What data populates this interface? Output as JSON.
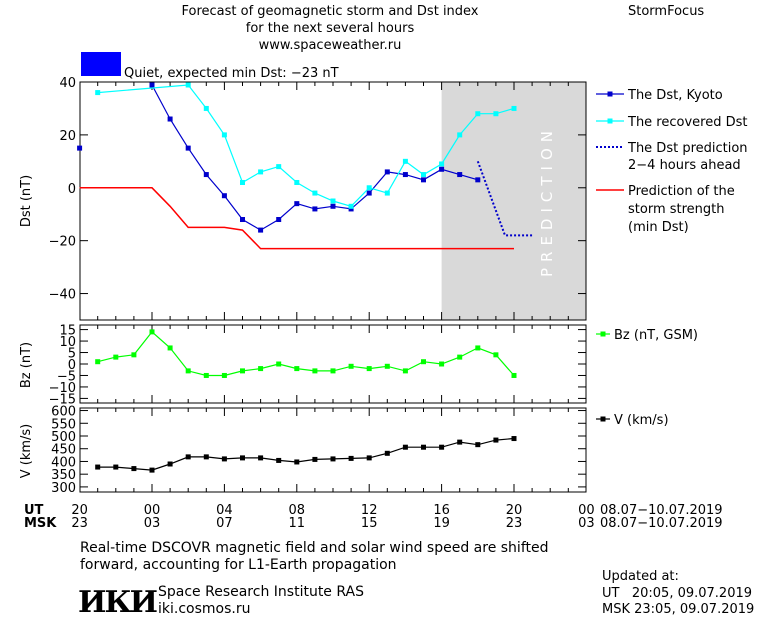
{
  "header": {
    "title_line1": "Forecast of geomagnetic storm and Dst index",
    "title_line2": "for the next several hours",
    "title_line3": "www.spaceweather.ru",
    "brand": "StormFocus"
  },
  "status": {
    "text": "Quiet, expected min Dst: −23 nT",
    "color": "#0000ff"
  },
  "legend": {
    "dst_kyoto": "The Dst, Kyoto",
    "dst_recovered": "The recovered Dst",
    "dst_prediction_line1": "The Dst prediction",
    "dst_prediction_line2": "2−4 hours ahead",
    "storm_line1": "Prediction of the",
    "storm_line2": "storm strength",
    "storm_line3": "(min Dst)",
    "bz": "Bz (nT, GSM)",
    "v": "V (km/s)"
  },
  "prediction_label": "PREDICTION",
  "axes": {
    "ut_label": "UT",
    "msk_label": "MSK",
    "ut_ticks": [
      "20",
      "00",
      "04",
      "08",
      "12",
      "16",
      "20",
      "00"
    ],
    "msk_ticks": [
      "23",
      "03",
      "07",
      "11",
      "15",
      "19",
      "23",
      "03"
    ],
    "date_range_ut": "08.07−10.07.2019",
    "date_range_msk": "08.07−10.07.2019"
  },
  "footer": {
    "note_line1": "Real-time DSCOVR magnetic field and solar wind speed are shifted",
    "note_line2": "forward, accounting for L1-Earth propagation",
    "logo_text": "ИКИ",
    "institute": "Space Research Institute RAS",
    "website": "iki.cosmos.ru",
    "updated_label": "Updated at:",
    "updated_ut": "UT   20:05, 09.07.2019",
    "updated_msk": "MSK 23:05, 09.07.2019"
  },
  "chart_data": [
    {
      "type": "line",
      "ylabel": "Dst (nT)",
      "ylim": [
        -50,
        40
      ],
      "yticks": [
        40,
        20,
        0,
        -20,
        -40
      ],
      "xlim": [
        -4,
        20
      ],
      "prediction_start": 16,
      "series": [
        {
          "name": "The Dst, Kyoto",
          "color": "#0000cc",
          "x": [
            -4,
            -2,
            -1,
            0,
            1,
            2,
            3,
            4,
            5,
            6,
            7,
            8,
            9,
            10,
            11,
            12,
            13,
            14,
            15,
            16,
            17,
            18
          ],
          "y": [
            15,
            null,
            null,
            40,
            26,
            15,
            5,
            -3,
            -12,
            -16,
            -12,
            -6,
            -8,
            -7,
            -8,
            -2,
            6,
            5,
            3,
            7,
            5,
            3
          ]
        },
        {
          "name": "The recovered Dst",
          "color": "#00ffff",
          "x": [
            -3,
            2,
            3,
            4,
            5,
            6,
            7,
            8,
            9,
            10,
            11,
            12,
            13,
            14,
            15,
            16,
            17,
            18,
            19,
            20
          ],
          "y": [
            36,
            40,
            30,
            20,
            2,
            6,
            8,
            2,
            -2,
            -5,
            -7,
            0,
            -2,
            10,
            5,
            9,
            20,
            28,
            28,
            30
          ]
        },
        {
          "name": "The Dst prediction 2-4 hours ahead",
          "color": "#0000cc",
          "x": [
            18,
            19.5,
            21
          ],
          "y": [
            10,
            -18,
            -18
          ]
        },
        {
          "name": "Prediction of the storm strength (min Dst)",
          "color": "#ff0000",
          "x": [
            -4,
            0,
            1,
            2,
            3,
            4,
            5,
            6,
            7,
            11,
            15,
            20
          ],
          "y": [
            0,
            0,
            -7,
            -15,
            -15,
            -15,
            -16,
            -23,
            -23,
            -23,
            -23,
            -23
          ]
        }
      ]
    },
    {
      "type": "line",
      "ylabel": "Bz (nT)",
      "ylim": [
        -17,
        17
      ],
      "yticks": [
        15,
        10,
        5,
        0,
        -5,
        -10,
        -15
      ],
      "series": [
        {
          "name": "Bz (nT, GSM)",
          "color": "#00ff00",
          "x": [
            -3,
            -2,
            -1,
            0,
            1,
            2,
            3,
            4,
            5,
            6,
            7,
            8,
            9,
            10,
            11,
            12,
            13,
            14,
            15,
            16,
            17,
            18,
            19,
            20
          ],
          "y": [
            1,
            3,
            4,
            14,
            7,
            -3,
            -5,
            -5,
            -3,
            -2,
            0,
            -2,
            -3,
            -3,
            -1,
            -2,
            -1,
            -3,
            1,
            0,
            3,
            7,
            4,
            -5
          ]
        }
      ]
    },
    {
      "type": "line",
      "ylabel": "V (km/s)",
      "ylim": [
        280,
        610
      ],
      "yticks": [
        600,
        550,
        500,
        450,
        400,
        350,
        300
      ],
      "series": [
        {
          "name": "V (km/s)",
          "color": "#000000",
          "x": [
            -3,
            -2,
            -1,
            0,
            1,
            2,
            3,
            4,
            5,
            6,
            7,
            8,
            9,
            10,
            11,
            12,
            13,
            14,
            15,
            16,
            17,
            18,
            19,
            20
          ],
          "y": [
            378,
            378,
            372,
            366,
            390,
            418,
            418,
            410,
            414,
            414,
            404,
            398,
            408,
            410,
            412,
            414,
            432,
            456,
            456,
            456,
            476,
            466,
            484,
            490
          ]
        }
      ]
    }
  ]
}
